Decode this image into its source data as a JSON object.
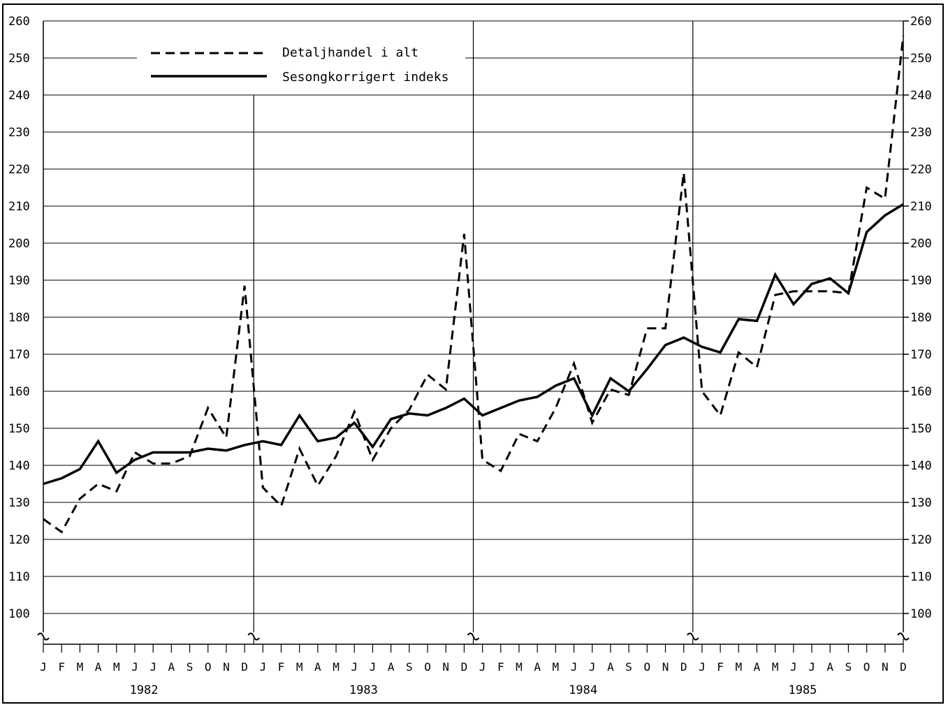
{
  "chart_data": {
    "type": "line",
    "ylim": [
      100,
      260
    ],
    "y_ticks": [
      100,
      110,
      120,
      130,
      140,
      150,
      160,
      170,
      180,
      190,
      200,
      210,
      220,
      230,
      240,
      250,
      260
    ],
    "month_labels": [
      "J",
      "F",
      "M",
      "A",
      "M",
      "J",
      "J",
      "A",
      "S",
      "O",
      "N",
      "D"
    ],
    "years": [
      "1982",
      "1983",
      "1984",
      "1985"
    ],
    "legend": {
      "position": "top-left"
    },
    "grid": true,
    "series": [
      {
        "name": "Detaljhandel i alt",
        "style": "dashed",
        "values": [
          125.5,
          122,
          131,
          135,
          133,
          143.5,
          140.5,
          140.5,
          142.5,
          155.5,
          147.5,
          188.5,
          134,
          129,
          144.5,
          134.5,
          142.5,
          154.5,
          141.5,
          150,
          155,
          164.5,
          160.5,
          202.5,
          141.5,
          138.5,
          148.5,
          146.5,
          155.5,
          167.5,
          151.5,
          160.5,
          159,
          177,
          177,
          219,
          160,
          153.5,
          170.5,
          166.5,
          186,
          187,
          187,
          187,
          186.5,
          215,
          212,
          256
        ]
      },
      {
        "name": "Sesongkorrigert indeks",
        "style": "solid",
        "values": [
          135,
          136.5,
          139,
          146.5,
          138,
          141.5,
          143.5,
          143.5,
          143.5,
          144.5,
          144,
          145.5,
          146.5,
          145.5,
          153.5,
          146.5,
          147.5,
          151.5,
          145,
          152.5,
          154,
          153.5,
          155.5,
          158,
          153.5,
          155.5,
          157.5,
          158.5,
          161.5,
          163.5,
          153.5,
          163.5,
          160,
          166,
          172.5,
          174.5,
          172,
          170.5,
          179.5,
          179,
          191.5,
          183.5,
          189,
          190.5,
          186.5,
          203,
          207.5,
          210.5
        ]
      }
    ]
  }
}
